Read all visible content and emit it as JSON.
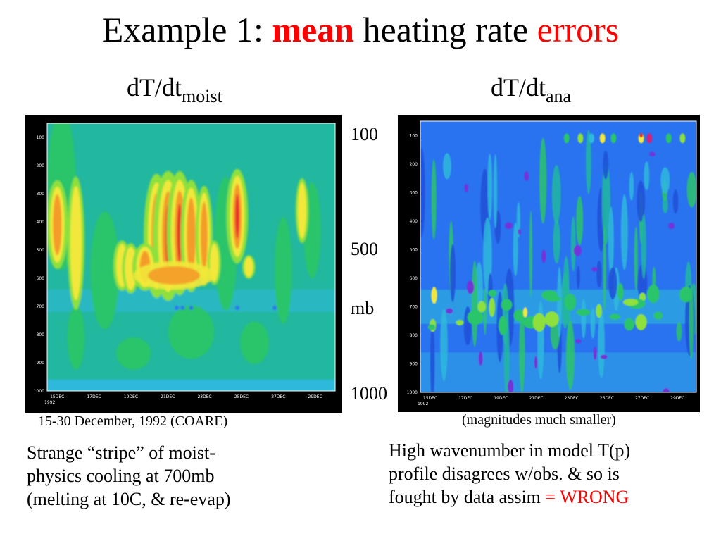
{
  "slide": {
    "title": {
      "part1": "Example 1: ",
      "part2": "mean",
      "part3": " heating rate ",
      "part4": "errors"
    },
    "left_heading": {
      "main": "dT/dt",
      "sub": "moist"
    },
    "right_heading": {
      "main": "dT/dt",
      "sub": "ana"
    },
    "pressure_labels": [
      "100",
      "500",
      "mb",
      "1000"
    ],
    "left_caption": "15-30 December, 1992 (COARE)",
    "right_caption": "(magnitudes much smaller)",
    "left_text": [
      "Strange “stripe” of moist-",
      "physics cooling at 700mb",
      "(melting at 10C, & re-evap)"
    ],
    "right_text": [
      "High wavenumber in model T(p)",
      "profile disagrees w/obs. & so is",
      "fought by data assim "
    ],
    "right_text_highlight": "= WRONG"
  },
  "plots": {
    "y_ticks": [
      "100",
      "200",
      "300",
      "400",
      "500",
      "600",
      "700",
      "800",
      "900",
      "1000"
    ],
    "x_ticks": [
      "15DEC\n1992",
      "17DEC",
      "19DEC",
      "21DEC",
      "23DEC",
      "25DEC",
      "27DEC",
      "29DEC"
    ],
    "left_x_ticks": [
      "15DEC",
      "17DEC",
      "19DEC",
      "21DEC",
      "23DEC",
      "25DEC",
      "27DEC",
      "29DEC"
    ],
    "right_x_ticks": [
      "15DEC",
      "17DEC",
      "19DEC",
      "21DEC",
      "23DEC",
      "25DEC",
      "27DEC",
      "29DEC"
    ],
    "year_label": "1992",
    "colors": {
      "background": "#000000",
      "teal": "#22b79f",
      "green": "#2bc46a",
      "blue": "#2a73f0",
      "cyan": "#2fb8dc",
      "lightgreen": "#8ee03e",
      "yellow": "#f2e83a",
      "orange": "#f49b2a",
      "red": "#e8282c",
      "magenta": "#d0207a",
      "purple": "#7a2bd8"
    }
  }
}
